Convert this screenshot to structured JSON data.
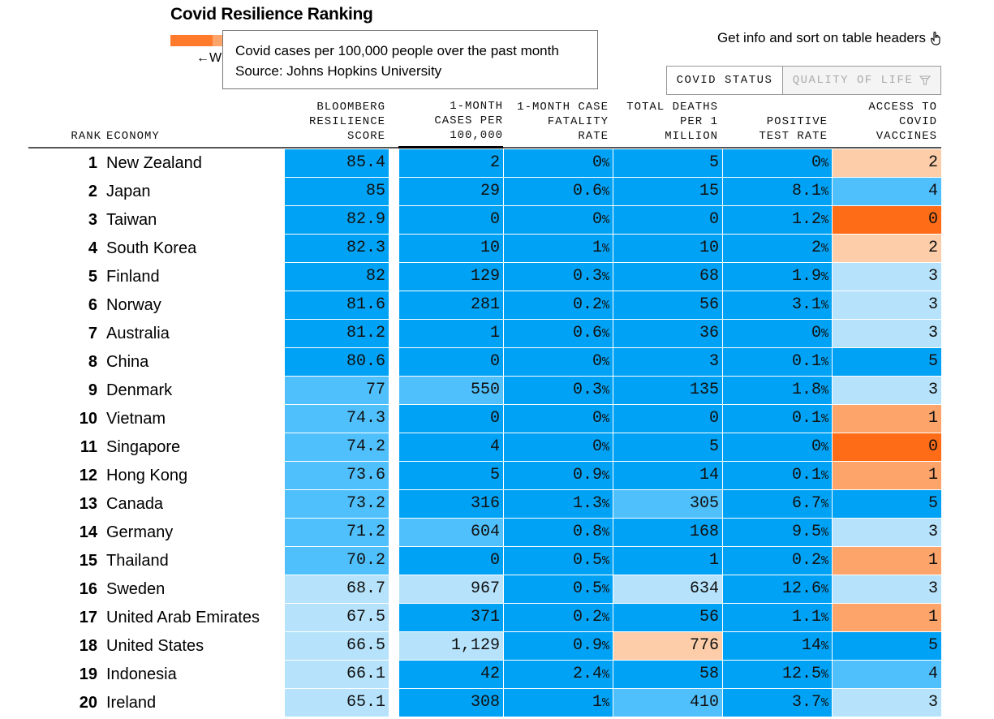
{
  "title": "Covid Resilience Ranking",
  "back_label": "W",
  "tooltip": {
    "line1": "Covid cases per 100,000 people over the past month",
    "line2": "Source: Johns Hopkins University"
  },
  "get_info_label": "Get info and sort on table headers",
  "tabs": {
    "active": "COVID STATUS",
    "inactive": "QUALITY OF LIFE"
  },
  "colors": {
    "blue_dark": "#00a2f5",
    "blue_mid": "#4fc0fc",
    "blue_light": "#b6e3fb",
    "peach": "#fccda8",
    "orange_light": "#fca46a",
    "orange_dark": "#ff6c17",
    "scale_orange": "#ff7a2a"
  },
  "headers": {
    "rank": "RANK",
    "economy": "ECONOMY",
    "score": "BLOOMBERG\nRESILIENCE\nSCORE",
    "cases": "1-MONTH\nCASES PER\n100,000",
    "fatality": "1-MONTH CASE\nFATALITY\nRATE",
    "deaths": "TOTAL DEATHS\nPER 1\nMILLION",
    "positive": "POSITIVE\nTEST RATE",
    "vaccines": "ACCESS TO\nCOVID\nVACCINES"
  },
  "rows": [
    {
      "rank": "1",
      "economy": "New Zealand",
      "score": "85.4",
      "cases": "2",
      "fatality": "0%",
      "deaths": "5",
      "positive": "0%",
      "vaccines": "2",
      "c": [
        "d",
        "d",
        "d",
        "d",
        "d",
        "p"
      ]
    },
    {
      "rank": "2",
      "economy": "Japan",
      "score": "85",
      "cases": "29",
      "fatality": "0.6%",
      "deaths": "15",
      "positive": "8.1%",
      "vaccines": "4",
      "c": [
        "d",
        "d",
        "d",
        "d",
        "d",
        "m"
      ]
    },
    {
      "rank": "3",
      "economy": "Taiwan",
      "score": "82.9",
      "cases": "0",
      "fatality": "0%",
      "deaths": "0",
      "positive": "1.2%",
      "vaccines": "0",
      "c": [
        "d",
        "d",
        "d",
        "d",
        "d",
        "o2"
      ]
    },
    {
      "rank": "4",
      "economy": "South Korea",
      "score": "82.3",
      "cases": "10",
      "fatality": "1%",
      "deaths": "10",
      "positive": "2%",
      "vaccines": "2",
      "c": [
        "d",
        "d",
        "d",
        "d",
        "d",
        "p"
      ]
    },
    {
      "rank": "5",
      "economy": "Finland",
      "score": "82",
      "cases": "129",
      "fatality": "0.3%",
      "deaths": "68",
      "positive": "1.9%",
      "vaccines": "3",
      "c": [
        "d",
        "d",
        "d",
        "d",
        "d",
        "l"
      ]
    },
    {
      "rank": "6",
      "economy": "Norway",
      "score": "81.6",
      "cases": "281",
      "fatality": "0.2%",
      "deaths": "56",
      "positive": "3.1%",
      "vaccines": "3",
      "c": [
        "d",
        "d",
        "d",
        "d",
        "d",
        "l"
      ]
    },
    {
      "rank": "7",
      "economy": "Australia",
      "score": "81.2",
      "cases": "1",
      "fatality": "0.6%",
      "deaths": "36",
      "positive": "0%",
      "vaccines": "3",
      "c": [
        "d",
        "d",
        "d",
        "d",
        "d",
        "l"
      ]
    },
    {
      "rank": "8",
      "economy": "China",
      "score": "80.6",
      "cases": "0",
      "fatality": "0%",
      "deaths": "3",
      "positive": "0.1%",
      "vaccines": "5",
      "c": [
        "d",
        "d",
        "d",
        "d",
        "d",
        "d"
      ]
    },
    {
      "rank": "9",
      "economy": "Denmark",
      "score": "77",
      "cases": "550",
      "fatality": "0.3%",
      "deaths": "135",
      "positive": "1.8%",
      "vaccines": "3",
      "c": [
        "m",
        "m",
        "d",
        "d",
        "d",
        "l"
      ]
    },
    {
      "rank": "10",
      "economy": "Vietnam",
      "score": "74.3",
      "cases": "0",
      "fatality": "0%",
      "deaths": "0",
      "positive": "0.1%",
      "vaccines": "1",
      "c": [
        "m",
        "d",
        "d",
        "d",
        "d",
        "o1"
      ]
    },
    {
      "rank": "11",
      "economy": "Singapore",
      "score": "74.2",
      "cases": "4",
      "fatality": "0%",
      "deaths": "5",
      "positive": "0%",
      "vaccines": "0",
      "c": [
        "m",
        "d",
        "d",
        "d",
        "d",
        "o2"
      ]
    },
    {
      "rank": "12",
      "economy": "Hong Kong",
      "score": "73.6",
      "cases": "5",
      "fatality": "0.9%",
      "deaths": "14",
      "positive": "0.1%",
      "vaccines": "1",
      "c": [
        "m",
        "d",
        "d",
        "d",
        "d",
        "o1"
      ]
    },
    {
      "rank": "13",
      "economy": "Canada",
      "score": "73.2",
      "cases": "316",
      "fatality": "1.3%",
      "deaths": "305",
      "positive": "6.7%",
      "vaccines": "5",
      "c": [
        "m",
        "d",
        "d",
        "m",
        "d",
        "d"
      ]
    },
    {
      "rank": "14",
      "economy": "Germany",
      "score": "71.2",
      "cases": "604",
      "fatality": "0.8%",
      "deaths": "168",
      "positive": "9.5%",
      "vaccines": "3",
      "c": [
        "m",
        "m",
        "d",
        "d",
        "d",
        "l"
      ]
    },
    {
      "rank": "15",
      "economy": "Thailand",
      "score": "70.2",
      "cases": "0",
      "fatality": "0.5%",
      "deaths": "1",
      "positive": "0.2%",
      "vaccines": "1",
      "c": [
        "m",
        "d",
        "d",
        "d",
        "d",
        "o1"
      ]
    },
    {
      "rank": "16",
      "economy": "Sweden",
      "score": "68.7",
      "cases": "967",
      "fatality": "0.5%",
      "deaths": "634",
      "positive": "12.6%",
      "vaccines": "3",
      "c": [
        "l",
        "l",
        "d",
        "l",
        "d",
        "l"
      ]
    },
    {
      "rank": "17",
      "economy": "United Arab Emirates",
      "score": "67.5",
      "cases": "371",
      "fatality": "0.2%",
      "deaths": "56",
      "positive": "1.1%",
      "vaccines": "1",
      "c": [
        "l",
        "d",
        "d",
        "d",
        "d",
        "o1"
      ]
    },
    {
      "rank": "18",
      "economy": "United States",
      "score": "66.5",
      "cases": "1,129",
      "fatality": "0.9%",
      "deaths": "776",
      "positive": "14%",
      "vaccines": "5",
      "c": [
        "l",
        "l",
        "d",
        "p",
        "d",
        "d"
      ]
    },
    {
      "rank": "19",
      "economy": "Indonesia",
      "score": "66.1",
      "cases": "42",
      "fatality": "2.4%",
      "deaths": "58",
      "positive": "12.5%",
      "vaccines": "4",
      "c": [
        "l",
        "d",
        "d",
        "d",
        "d",
        "m"
      ]
    },
    {
      "rank": "20",
      "economy": "Ireland",
      "score": "65.1",
      "cases": "308",
      "fatality": "1%",
      "deaths": "410",
      "positive": "3.7%",
      "vaccines": "3",
      "c": [
        "l",
        "d",
        "d",
        "m",
        "d",
        "l"
      ]
    }
  ]
}
